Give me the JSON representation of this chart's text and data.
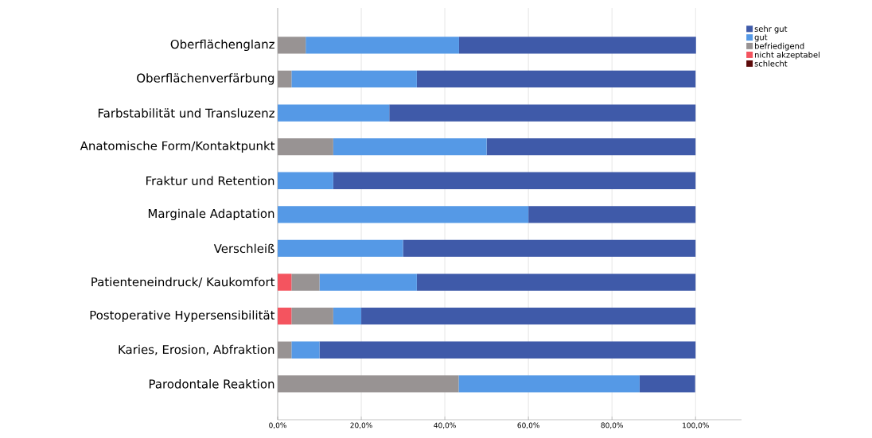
{
  "chart_data": {
    "type": "bar",
    "orientation": "horizontal",
    "stacked": true,
    "categories": [
      "Oberflächenglanz",
      "Oberflächenverfärbung",
      "Farbstabilität und Transluzenz",
      "Anatomische Form/Kontaktpunkt",
      "Fraktur und Retention",
      "Marginale Adaptation",
      "Verschleiß",
      "Patienteneindruck/ Kaukomfort",
      "Postoperative Hypersensibilität",
      "Karies, Erosion, Abfraktion",
      "Parodontale Reaktion"
    ],
    "series": [
      {
        "name": "schlecht",
        "color": "#5c0a0a",
        "values": [
          0,
          0,
          0,
          0,
          0,
          0,
          0,
          0,
          0,
          0,
          0
        ]
      },
      {
        "name": "nicht akzeptabel",
        "color": "#f4545f",
        "values": [
          0,
          0,
          0,
          0,
          0,
          0,
          0,
          3.3,
          3.3,
          0,
          0
        ]
      },
      {
        "name": "befriedigend",
        "color": "#989393",
        "values": [
          6.7,
          3.3,
          0,
          13.3,
          0,
          0,
          0,
          6.7,
          10,
          3.3,
          43.3
        ]
      },
      {
        "name": "gut",
        "color": "#5599e6",
        "values": [
          36.7,
          30,
          26.7,
          36.7,
          13.3,
          60,
          30,
          23.3,
          6.7,
          6.7,
          43.3
        ]
      },
      {
        "name": "sehr gut",
        "color": "#3f5aa9",
        "values": [
          56.7,
          66.7,
          73.3,
          50,
          86.7,
          40,
          70,
          66.7,
          80,
          90,
          13.3
        ]
      }
    ],
    "xlim": [
      0,
      111
    ],
    "xticks": [
      {
        "value": 0,
        "label": "0,0%"
      },
      {
        "value": 20,
        "label": "20,0%"
      },
      {
        "value": 40,
        "label": "40,0%"
      },
      {
        "value": 60,
        "label": "60,0%"
      },
      {
        "value": 80,
        "label": "80,0%"
      },
      {
        "value": 100,
        "label": "100,0%"
      }
    ],
    "grid": "x",
    "legend": "top right"
  }
}
